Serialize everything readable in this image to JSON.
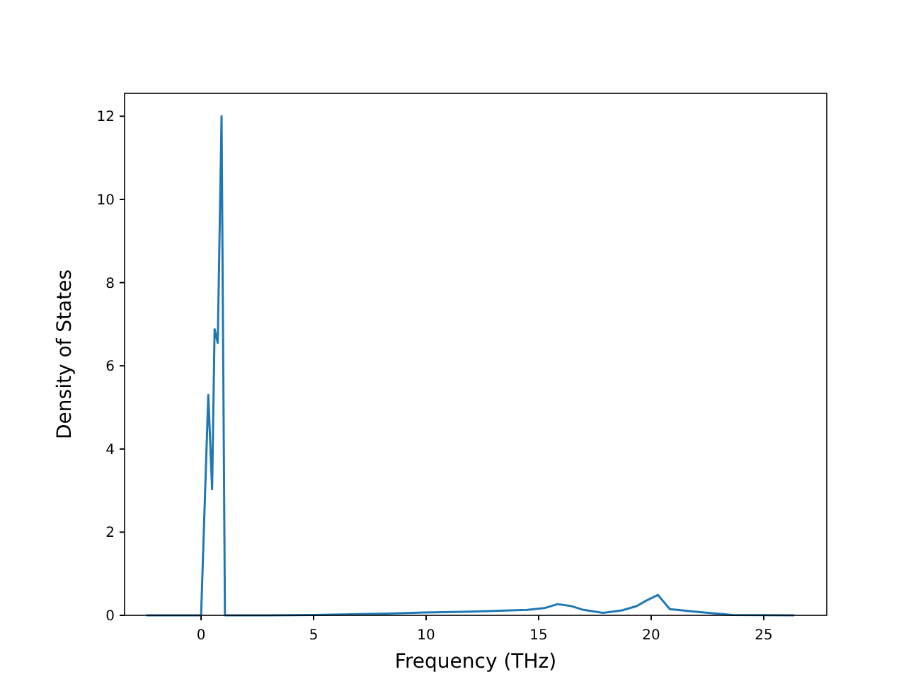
{
  "chart_data": {
    "type": "line",
    "xlabel": "Frequency (THz)",
    "ylabel": "Density of States",
    "xlim": [
      -3.4,
      27.8
    ],
    "ylim": [
      0,
      12.55
    ],
    "xticks": [
      0,
      5,
      10,
      15,
      20,
      25
    ],
    "yticks": [
      0,
      2,
      4,
      6,
      8,
      10,
      12
    ],
    "grid": false,
    "series": [
      {
        "color": "#1f77b4",
        "x": [
          -2.44,
          -0.1,
          0.0,
          0.32,
          0.49,
          0.6,
          0.74,
          0.91,
          1.06,
          3,
          5,
          8,
          9.9,
          12,
          14.5,
          15.3,
          15.84,
          16.47,
          17.0,
          17.86,
          18.7,
          19.35,
          19.77,
          20.3,
          20.83,
          22.1,
          23.6,
          26.36
        ],
        "values": [
          0,
          0,
          0,
          5.3,
          3.03,
          6.88,
          6.55,
          12.0,
          0,
          0,
          0.01,
          0.04,
          0.07,
          0.09,
          0.13,
          0.18,
          0.27,
          0.22,
          0.13,
          0.06,
          0.12,
          0.22,
          0.35,
          0.49,
          0.15,
          0.08,
          0.01,
          0
        ]
      }
    ]
  }
}
